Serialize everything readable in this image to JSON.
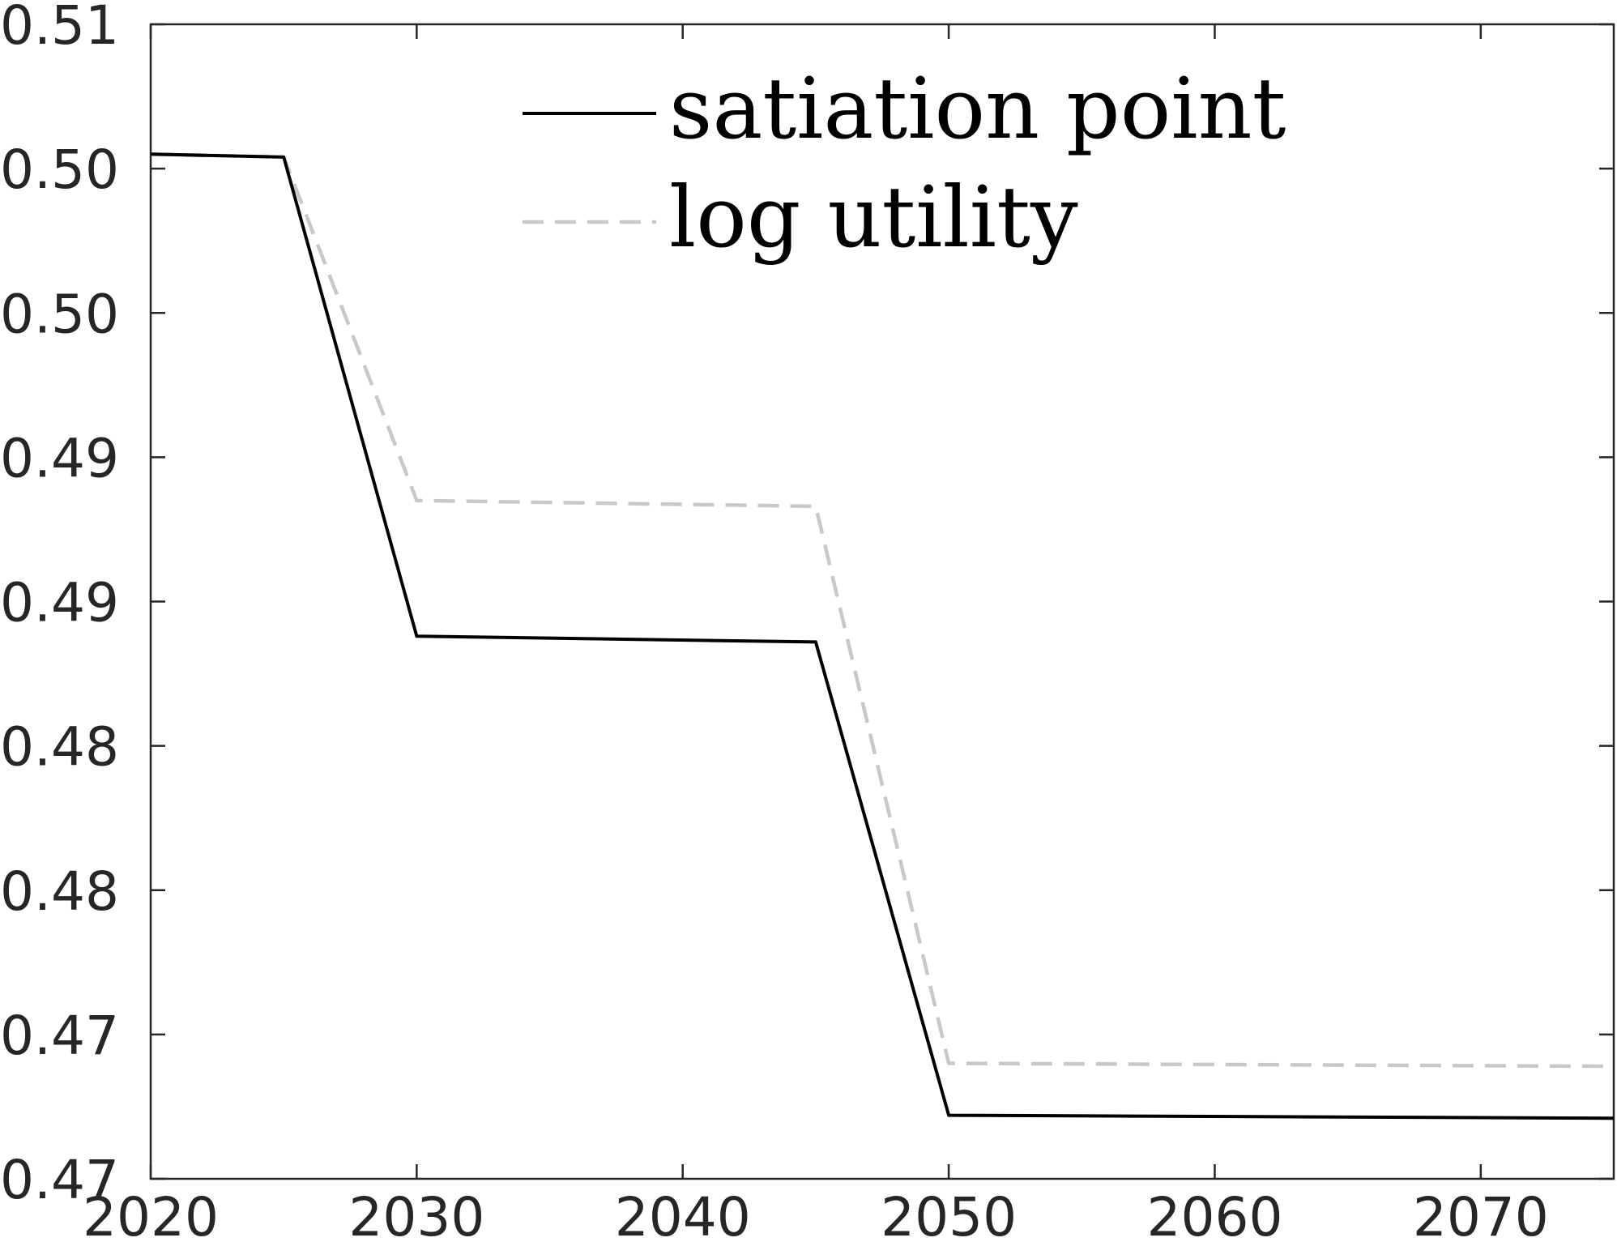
{
  "chart_data": {
    "type": "line",
    "title": "",
    "xlabel": "",
    "ylabel": "",
    "xlim": [
      2020,
      2075
    ],
    "ylim": [
      0.465,
      0.505
    ],
    "x_ticks": [
      2020,
      2030,
      2040,
      2050,
      2060,
      2070
    ],
    "x_tick_labels": [
      "2020",
      "2030",
      "2040",
      "2050",
      "2060",
      "2070"
    ],
    "y_ticks": [
      0.465,
      0.47,
      0.475,
      0.48,
      0.485,
      0.49,
      0.495,
      0.5,
      0.505
    ],
    "y_tick_labels": [
      "0.47",
      "0.47",
      "0.48",
      "0.48",
      "0.49",
      "0.49",
      "0.50",
      "0.50",
      "0.51"
    ],
    "grid": false,
    "legend_position": "top-center",
    "series": [
      {
        "name": "satiation point",
        "style": "solid",
        "color": "#000000",
        "x": [
          2020,
          2025,
          2030,
          2045,
          2050,
          2075
        ],
        "y": [
          0.5005,
          0.5004,
          0.4838,
          0.4836,
          0.4672,
          0.4671
        ]
      },
      {
        "name": "log utility",
        "style": "dashed",
        "color": "#c8c8c8",
        "x": [
          2020,
          2025,
          2030,
          2045,
          2050,
          2075
        ],
        "y": [
          0.5005,
          0.5004,
          0.4885,
          0.4883,
          0.469,
          0.4689
        ]
      }
    ]
  }
}
